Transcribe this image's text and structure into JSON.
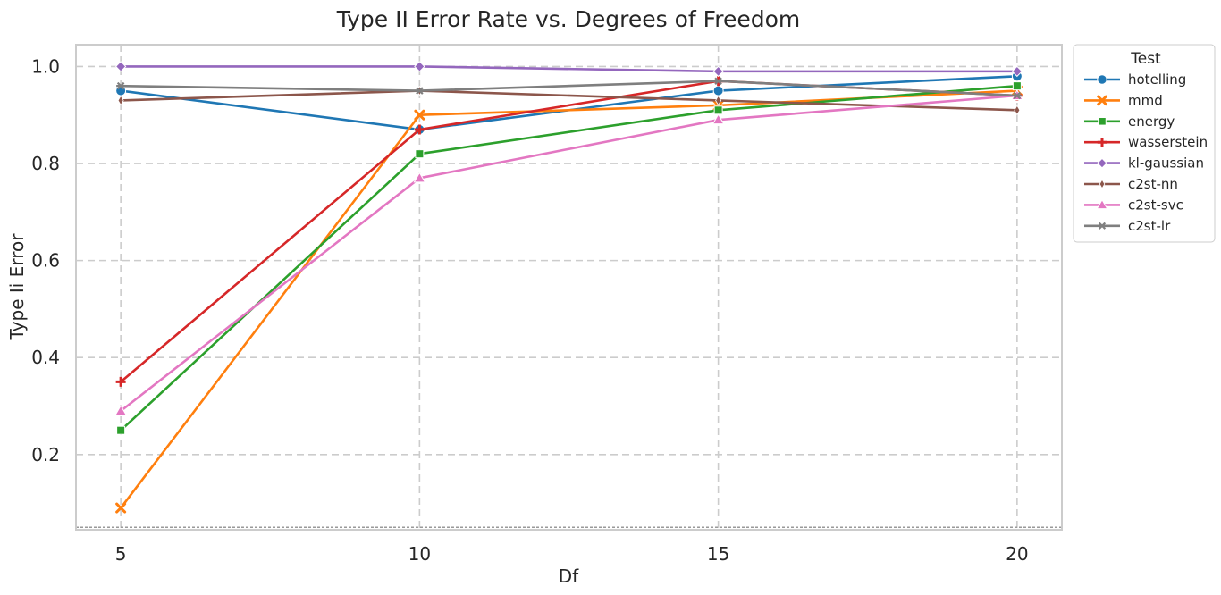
{
  "chart_data": {
    "type": "line",
    "title": "Type II Error Rate vs. Degrees of Freedom",
    "xlabel": "Df",
    "ylabel": "Type Ii Error",
    "x": [
      5,
      10,
      15,
      20
    ],
    "xticks": [
      5,
      10,
      15,
      20
    ],
    "yticks": [
      0.2,
      0.4,
      0.6,
      0.8,
      1.0
    ],
    "ytick_labels": [
      "0.2",
      "0.4",
      "0.6",
      "0.8",
      "1.0"
    ],
    "xlim": [
      4.25,
      20.75
    ],
    "ylim": [
      0.045,
      1.045
    ],
    "grid": true,
    "reference_line_y": 0.05,
    "legend": {
      "title": "Test",
      "placement": "outside-top-right"
    },
    "series": [
      {
        "name": "hotelling",
        "values": [
          0.95,
          0.87,
          0.95,
          0.98
        ],
        "color": "#1f77b4",
        "marker": "circle"
      },
      {
        "name": "mmd",
        "values": [
          0.09,
          0.9,
          0.92,
          0.95
        ],
        "color": "#ff7f0e",
        "marker": "x"
      },
      {
        "name": "energy",
        "values": [
          0.25,
          0.82,
          0.91,
          0.96
        ],
        "color": "#2ca02c",
        "marker": "square"
      },
      {
        "name": "wasserstein",
        "values": [
          0.35,
          0.87,
          0.97,
          0.94
        ],
        "color": "#d62728",
        "marker": "plus"
      },
      {
        "name": "kl-gaussian",
        "values": [
          1.0,
          1.0,
          0.99,
          0.99
        ],
        "color": "#9467bd",
        "marker": "diamond"
      },
      {
        "name": "c2st-nn",
        "values": [
          0.93,
          0.95,
          0.93,
          0.91
        ],
        "color": "#8c564b",
        "marker": "thin-diamond"
      },
      {
        "name": "c2st-svc",
        "values": [
          0.29,
          0.77,
          0.89,
          0.94
        ],
        "color": "#e377c2",
        "marker": "triangle"
      },
      {
        "name": "c2st-lr",
        "values": [
          0.96,
          0.95,
          0.97,
          0.94
        ],
        "color": "#7f7f7f",
        "marker": "star"
      }
    ]
  }
}
